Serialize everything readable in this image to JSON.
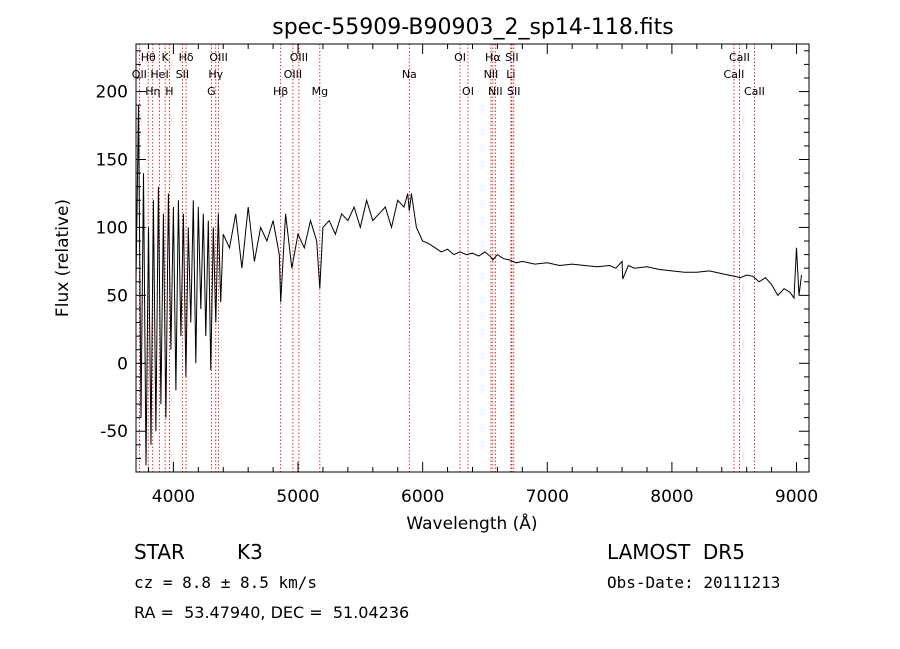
{
  "chart_data": {
    "type": "line",
    "title": "spec-55909-B90903_2_sp14-118.fits",
    "xlabel": "Wavelength (Å)",
    "ylabel": "Flux (relative)",
    "xlim": [
      3700,
      9100
    ],
    "ylim": [
      -80,
      235
    ],
    "xticks": [
      4000,
      5000,
      6000,
      7000,
      8000,
      9000
    ],
    "yticks": [
      -50,
      0,
      50,
      100,
      150,
      200
    ],
    "series": [
      {
        "line_color": "#000000",
        "x": [
          3700,
          3720,
          3740,
          3760,
          3780,
          3800,
          3820,
          3840,
          3860,
          3880,
          3900,
          3920,
          3940,
          3960,
          3980,
          4000,
          4020,
          4040,
          4060,
          4080,
          4100,
          4120,
          4140,
          4160,
          4180,
          4200,
          4220,
          4240,
          4260,
          4280,
          4300,
          4320,
          4340,
          4360,
          4380,
          4400,
          4450,
          4500,
          4550,
          4600,
          4650,
          4700,
          4750,
          4800,
          4850,
          4861,
          4900,
          4950,
          5000,
          5050,
          5100,
          5150,
          5175,
          5200,
          5250,
          5300,
          5350,
          5400,
          5450,
          5500,
          5550,
          5600,
          5650,
          5700,
          5750,
          5800,
          5850,
          5880,
          5893,
          5910,
          5950,
          6000,
          6050,
          6100,
          6150,
          6200,
          6250,
          6300,
          6350,
          6400,
          6450,
          6500,
          6550,
          6563,
          6600,
          6650,
          6700,
          6750,
          6800,
          6900,
          7000,
          7100,
          7200,
          7300,
          7400,
          7500,
          7550,
          7600,
          7605,
          7650,
          7700,
          7800,
          7900,
          8000,
          8100,
          8200,
          8300,
          8400,
          8500,
          8550,
          8600,
          8650,
          8700,
          8750,
          8800,
          8850,
          8900,
          8950,
          8980,
          9000,
          9020,
          9040
        ],
        "y": [
          60,
          190,
          -40,
          140,
          -75,
          100,
          -60,
          120,
          -50,
          130,
          -30,
          110,
          -40,
          125,
          10,
          115,
          -20,
          120,
          20,
          110,
          -10,
          100,
          30,
          120,
          0,
          115,
          40,
          110,
          20,
          105,
          -5,
          100,
          30,
          110,
          45,
          95,
          85,
          110,
          70,
          115,
          75,
          100,
          90,
          105,
          80,
          45,
          110,
          70,
          95,
          85,
          105,
          90,
          55,
          100,
          105,
          95,
          110,
          105,
          115,
          100,
          120,
          105,
          110,
          115,
          100,
          120,
          115,
          125,
          112,
          125,
          100,
          90,
          88,
          85,
          82,
          84,
          80,
          82,
          80,
          81,
          79,
          82,
          78,
          76,
          80,
          77,
          76,
          74,
          75,
          73,
          74,
          72,
          73,
          72,
          71,
          72,
          70,
          75,
          62,
          72,
          70,
          71,
          69,
          68,
          67,
          67,
          68,
          66,
          64,
          63,
          65,
          64,
          60,
          63,
          58,
          50,
          55,
          52,
          48,
          85,
          50,
          65
        ]
      }
    ],
    "emission_lines": [
      {
        "label": "Hθ",
        "x": 3798,
        "row": 1
      },
      {
        "label": "K",
        "x": 3934,
        "row": 1
      },
      {
        "label": "Hδ",
        "x": 4102,
        "row": 1
      },
      {
        "label": "OIII",
        "x": 4363,
        "row": 1
      },
      {
        "label": "OIII",
        "x": 5007,
        "row": 1
      },
      {
        "label": "OI",
        "x": 6300,
        "row": 1
      },
      {
        "label": "Hα",
        "x": 6563,
        "row": 1
      },
      {
        "label": "SII",
        "x": 6716,
        "row": 1
      },
      {
        "label": "CaII",
        "x": 8542,
        "row": 1
      },
      {
        "label": "OII",
        "x": 3727,
        "row": 2
      },
      {
        "label": "HeI",
        "x": 3889,
        "row": 2
      },
      {
        "label": "SII",
        "x": 4072,
        "row": 2
      },
      {
        "label": "Hγ",
        "x": 4340,
        "row": 2
      },
      {
        "label": "OIII",
        "x": 4959,
        "row": 2
      },
      {
        "label": "Na",
        "x": 5893,
        "row": 2
      },
      {
        "label": "NII",
        "x": 6548,
        "row": 2
      },
      {
        "label": "Li",
        "x": 6708,
        "row": 2
      },
      {
        "label": "CaII",
        "x": 8498,
        "row": 2
      },
      {
        "label": "Hη",
        "x": 3835,
        "row": 3
      },
      {
        "label": "H",
        "x": 3968,
        "row": 3
      },
      {
        "label": "G",
        "x": 4305,
        "row": 3
      },
      {
        "label": "Hβ",
        "x": 4861,
        "row": 3
      },
      {
        "label": "Mg",
        "x": 5175,
        "row": 3
      },
      {
        "label": "OI",
        "x": 6364,
        "row": 3
      },
      {
        "label": "NII",
        "x": 6583,
        "row": 3
      },
      {
        "label": "SII",
        "x": 6731,
        "row": 3
      },
      {
        "label": "CaII",
        "x": 8662,
        "row": 3
      }
    ],
    "emission_line_color": "#cc0000",
    "grid": false
  },
  "footer": {
    "class_text": "STAR",
    "subclass_text": "K3",
    "cz_text": "cz = 8.8 ± 8.5 km/s",
    "coords_text": "RA =  53.47940, DEC =  51.04236",
    "survey_text": "LAMOST  DR5",
    "obsdate_text": "Obs-Date: 20111213"
  }
}
